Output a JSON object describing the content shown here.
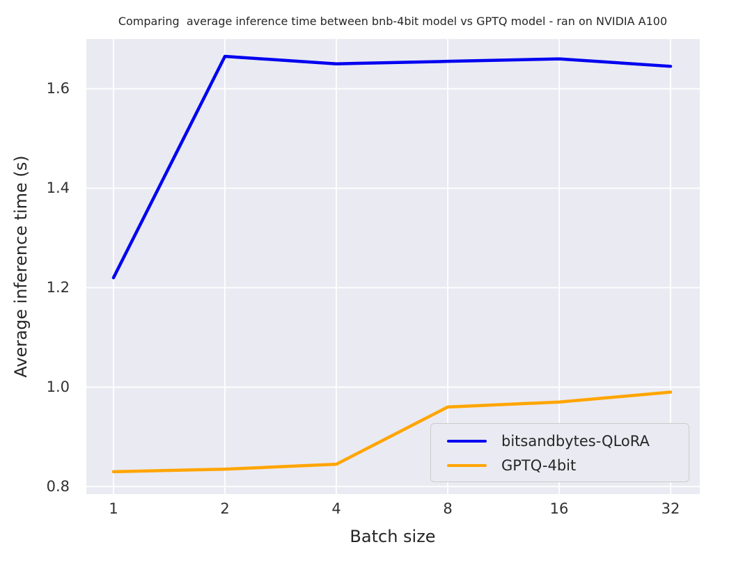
{
  "figure": {
    "title": "Comparing  average inference time between bnb-4bit model vs GPTQ model - ran on NVIDIA A100"
  },
  "chart_data": {
    "type": "line",
    "title": "Comparing  average inference time between bnb-4bit model vs GPTQ model - ran on NVIDIA A100",
    "xlabel": "Batch size",
    "ylabel": "Average inference time (s)",
    "x_scale": "log2",
    "categories": [
      1,
      2,
      4,
      8,
      16,
      32
    ],
    "series": [
      {
        "name": "bitsandbytes-QLoRA",
        "color": "#0000f0",
        "values": [
          1.22,
          1.665,
          1.65,
          1.655,
          1.66,
          1.645
        ]
      },
      {
        "name": "GPTQ-4bit",
        "color": "#ffa500",
        "values": [
          0.83,
          0.835,
          0.845,
          0.96,
          0.97,
          0.99
        ]
      }
    ],
    "yticks": [
      0.8,
      1.0,
      1.2,
      1.4,
      1.6
    ],
    "ylim": [
      0.785,
      1.7
    ],
    "grid": true,
    "grid_color": "#ffffff",
    "plot_background": "#eaeaf2",
    "text_color": "#262626",
    "legend_position": "lower right"
  }
}
